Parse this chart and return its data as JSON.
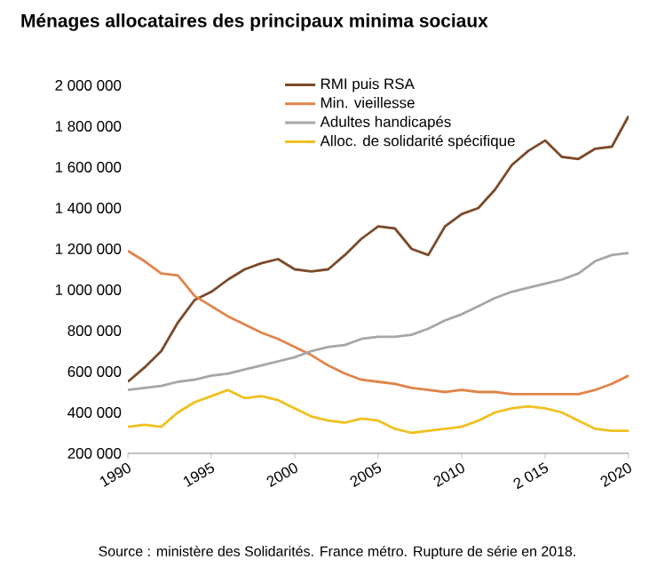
{
  "chart_data": {
    "type": "line",
    "title": "Ménages allocataires des principaux minima sociaux",
    "x": [
      1990,
      1991,
      1992,
      1993,
      1994,
      1995,
      1996,
      1997,
      1998,
      1999,
      2000,
      2001,
      2002,
      2003,
      2004,
      2005,
      2006,
      2007,
      2008,
      2009,
      2010,
      2011,
      2012,
      2013,
      2014,
      2015,
      2016,
      2017,
      2018,
      2019,
      2020
    ],
    "series": [
      {
        "name": "RMI puis RSA",
        "color": "#7b4a2a",
        "values": [
          550000,
          620000,
          700000,
          840000,
          950000,
          990000,
          1050000,
          1100000,
          1130000,
          1150000,
          1100000,
          1090000,
          1100000,
          1170000,
          1250000,
          1310000,
          1300000,
          1200000,
          1170000,
          1310000,
          1370000,
          1400000,
          1490000,
          1610000,
          1680000,
          1730000,
          1650000,
          1640000,
          1690000,
          1700000,
          1850000
        ]
      },
      {
        "name": "Min. vieillesse",
        "color": "#e0844a",
        "values": [
          1190000,
          1140000,
          1080000,
          1070000,
          970000,
          920000,
          870000,
          830000,
          790000,
          760000,
          720000,
          680000,
          630000,
          590000,
          560000,
          550000,
          540000,
          520000,
          510000,
          500000,
          510000,
          500000,
          500000,
          490000,
          490000,
          490000,
          490000,
          490000,
          510000,
          540000,
          580000
        ]
      },
      {
        "name": "Adultes handicapés",
        "color": "#a6a6a6",
        "values": [
          510000,
          520000,
          530000,
          550000,
          560000,
          580000,
          590000,
          610000,
          630000,
          650000,
          670000,
          700000,
          720000,
          730000,
          760000,
          770000,
          770000,
          780000,
          810000,
          850000,
          880000,
          920000,
          960000,
          990000,
          1010000,
          1030000,
          1050000,
          1080000,
          1140000,
          1170000,
          1180000
        ]
      },
      {
        "name": "Alloc. de solidarité spécifique",
        "color": "#f0c020",
        "values": [
          330000,
          340000,
          330000,
          400000,
          450000,
          480000,
          510000,
          470000,
          480000,
          460000,
          420000,
          380000,
          360000,
          350000,
          370000,
          360000,
          320000,
          300000,
          310000,
          320000,
          330000,
          360000,
          400000,
          420000,
          430000,
          420000,
          400000,
          360000,
          320000,
          310000,
          310000
        ]
      }
    ],
    "xlim": [
      1990,
      2020
    ],
    "ylim": [
      200000,
      2000000
    ],
    "xticks": [
      1990,
      1995,
      2000,
      2005,
      2010,
      {
        "value": 2015,
        "label": "2 015"
      },
      2020
    ],
    "yticks": [
      {
        "value": 200000,
        "label": "200 000"
      },
      {
        "value": 400000,
        "label": "400 000"
      },
      {
        "value": 600000,
        "label": "600 000"
      },
      {
        "value": 800000,
        "label": "800 000"
      },
      {
        "value": 1000000,
        "label": "1 000 000"
      },
      {
        "value": 1200000,
        "label": "1 200 000"
      },
      {
        "value": 1400000,
        "label": "1 400 000"
      },
      {
        "value": 1600000,
        "label": "1 600 000"
      },
      {
        "value": 1800000,
        "label": "1 800 000"
      },
      {
        "value": 2000000,
        "label": "2 000 000"
      }
    ],
    "grid": false,
    "legend": "top",
    "marker": "none",
    "line_style": "solid",
    "annotations": [
      "Source : ministère des  Solidarités. France métro. Rupture de série en 2018."
    ]
  }
}
